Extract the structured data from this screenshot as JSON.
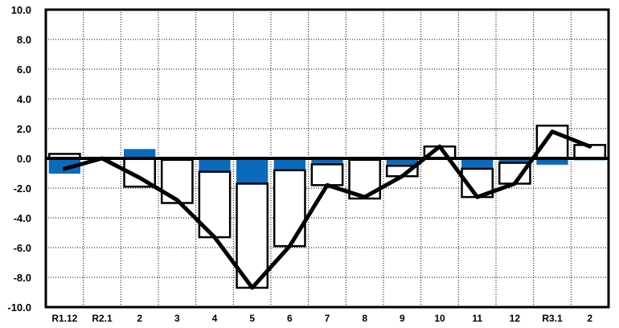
{
  "chart_data": {
    "type": "bar",
    "title": "",
    "xlabel": "",
    "ylabel": "",
    "ylim": [
      -10,
      10
    ],
    "y_ticks": [
      "10.0",
      "8.0",
      "6.0",
      "4.0",
      "2.0",
      "0.0",
      "-2.0",
      "-4.0",
      "-6.0",
      "-8.0",
      "-10.0"
    ],
    "categories": [
      "R1.12",
      "R2.1",
      "2",
      "3",
      "4",
      "5",
      "6",
      "7",
      "8",
      "9",
      "10",
      "11",
      "12",
      "R3.1",
      "2"
    ],
    "grid": true,
    "legend": "none",
    "series": [
      {
        "kind": "bar-blue",
        "color": "#0a6bbd",
        "values": [
          -1.0,
          0.0,
          0.6,
          -0.1,
          -0.9,
          -1.7,
          -0.8,
          -0.4,
          -0.1,
          -0.5,
          0.0,
          -0.7,
          -0.3,
          -0.4,
          -0.1
        ]
      },
      {
        "kind": "bar-white-stacked",
        "color": "#ffffff",
        "values": [
          0.3,
          0.0,
          -1.9,
          -2.9,
          -4.4,
          -7.0,
          -5.1,
          -1.4,
          -2.6,
          -0.7,
          0.8,
          -1.9,
          -1.4,
          2.2,
          0.9
        ]
      },
      {
        "kind": "line",
        "color": "#000000",
        "values": [
          -0.7,
          0.0,
          -1.3,
          -2.8,
          -5.3,
          -8.7,
          -5.9,
          -1.8,
          -2.6,
          -1.2,
          0.8,
          -2.6,
          -1.7,
          1.8,
          0.8
        ]
      }
    ]
  }
}
